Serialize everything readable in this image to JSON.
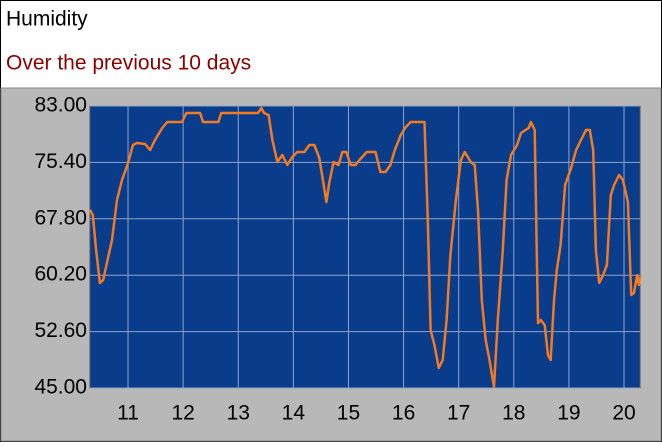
{
  "chart_data": {
    "type": "line",
    "title": "Humidity",
    "subtitle": "Over the previous 10 days",
    "x": [
      10.31,
      10.36,
      10.42,
      10.49,
      10.55,
      10.62,
      10.71,
      10.8,
      10.89,
      11.0,
      11.09,
      11.16,
      11.31,
      11.4,
      11.49,
      11.62,
      11.71,
      11.98,
      12.06,
      12.31,
      12.36,
      12.64,
      12.69,
      13.36,
      13.42,
      13.47,
      13.55,
      13.62,
      13.71,
      13.8,
      13.89,
      13.98,
      14.07,
      14.2,
      14.29,
      14.38,
      14.47,
      14.55,
      14.6,
      14.65,
      14.73,
      14.82,
      14.89,
      14.96,
      15.04,
      15.13,
      15.2,
      15.33,
      15.49,
      15.58,
      15.67,
      15.76,
      15.84,
      15.95,
      16.04,
      16.13,
      16.38,
      16.44,
      16.49,
      16.56,
      16.64,
      16.71,
      16.78,
      16.85,
      16.95,
      17.04,
      17.11,
      17.22,
      17.29,
      17.35,
      17.42,
      17.49,
      17.56,
      17.64,
      17.71,
      17.8,
      17.87,
      17.95,
      18.06,
      18.13,
      18.27,
      18.31,
      18.38,
      18.44,
      18.49,
      18.56,
      18.62,
      18.67,
      18.73,
      18.78,
      18.85,
      18.93,
      19.04,
      19.13,
      19.22,
      19.31,
      19.38,
      19.44,
      19.49,
      19.55,
      19.62,
      19.69,
      19.76,
      19.82,
      19.91,
      19.98,
      20.07,
      20.13,
      20.18,
      20.24,
      20.27,
      20.29
    ],
    "values": [
      68.98,
      68.31,
      63.59,
      59.15,
      59.55,
      61.98,
      64.94,
      70.33,
      73.03,
      75.32,
      77.74,
      78.01,
      77.88,
      77.07,
      78.42,
      80.04,
      80.84,
      80.84,
      82.06,
      82.06,
      80.84,
      80.84,
      82.06,
      82.06,
      82.73,
      82.06,
      81.79,
      78.42,
      75.45,
      76.4,
      75.05,
      76.13,
      76.8,
      76.8,
      77.74,
      77.74,
      75.99,
      72.35,
      70.06,
      72.62,
      75.45,
      75.05,
      76.8,
      76.8,
      75.05,
      75.05,
      75.72,
      76.8,
      76.8,
      74.11,
      74.11,
      75.05,
      77.07,
      79.09,
      80.17,
      80.84,
      80.84,
      67.64,
      52.81,
      50.79,
      47.69,
      48.77,
      54.16,
      62.92,
      70.33,
      75.72,
      76.8,
      75.45,
      75.05,
      68.98,
      56.85,
      51.46,
      48.77,
      45.13,
      54.16,
      63.59,
      73.03,
      76.4,
      77.74,
      79.36,
      80.04,
      80.84,
      79.77,
      53.75,
      54.16,
      53.49,
      49.44,
      48.77,
      56.85,
      60.9,
      64.27,
      72.35,
      74.64,
      77.07,
      78.42,
      79.77,
      79.77,
      77.07,
      63.59,
      59.15,
      60.22,
      61.57,
      71.0,
      72.35,
      73.7,
      73.03,
      70.06,
      57.53,
      57.8,
      60.22,
      58.88,
      60.0
    ],
    "color": "#f47a20",
    "xlim": [
      10.31,
      20.29
    ],
    "xticks": [
      11,
      12,
      13,
      14,
      15,
      16,
      17,
      18,
      19,
      20
    ],
    "ylim": [
      45,
      83
    ],
    "yticks": [
      {
        "value": 45,
        "label": "45.00"
      },
      {
        "value": 52.6,
        "label": "52.60"
      },
      {
        "value": 60.2,
        "label": "60.20"
      },
      {
        "value": 67.8,
        "label": "67.80"
      },
      {
        "value": 75.4,
        "label": "75.40"
      },
      {
        "value": 83,
        "label": "83.00"
      }
    ],
    "grid": true
  }
}
